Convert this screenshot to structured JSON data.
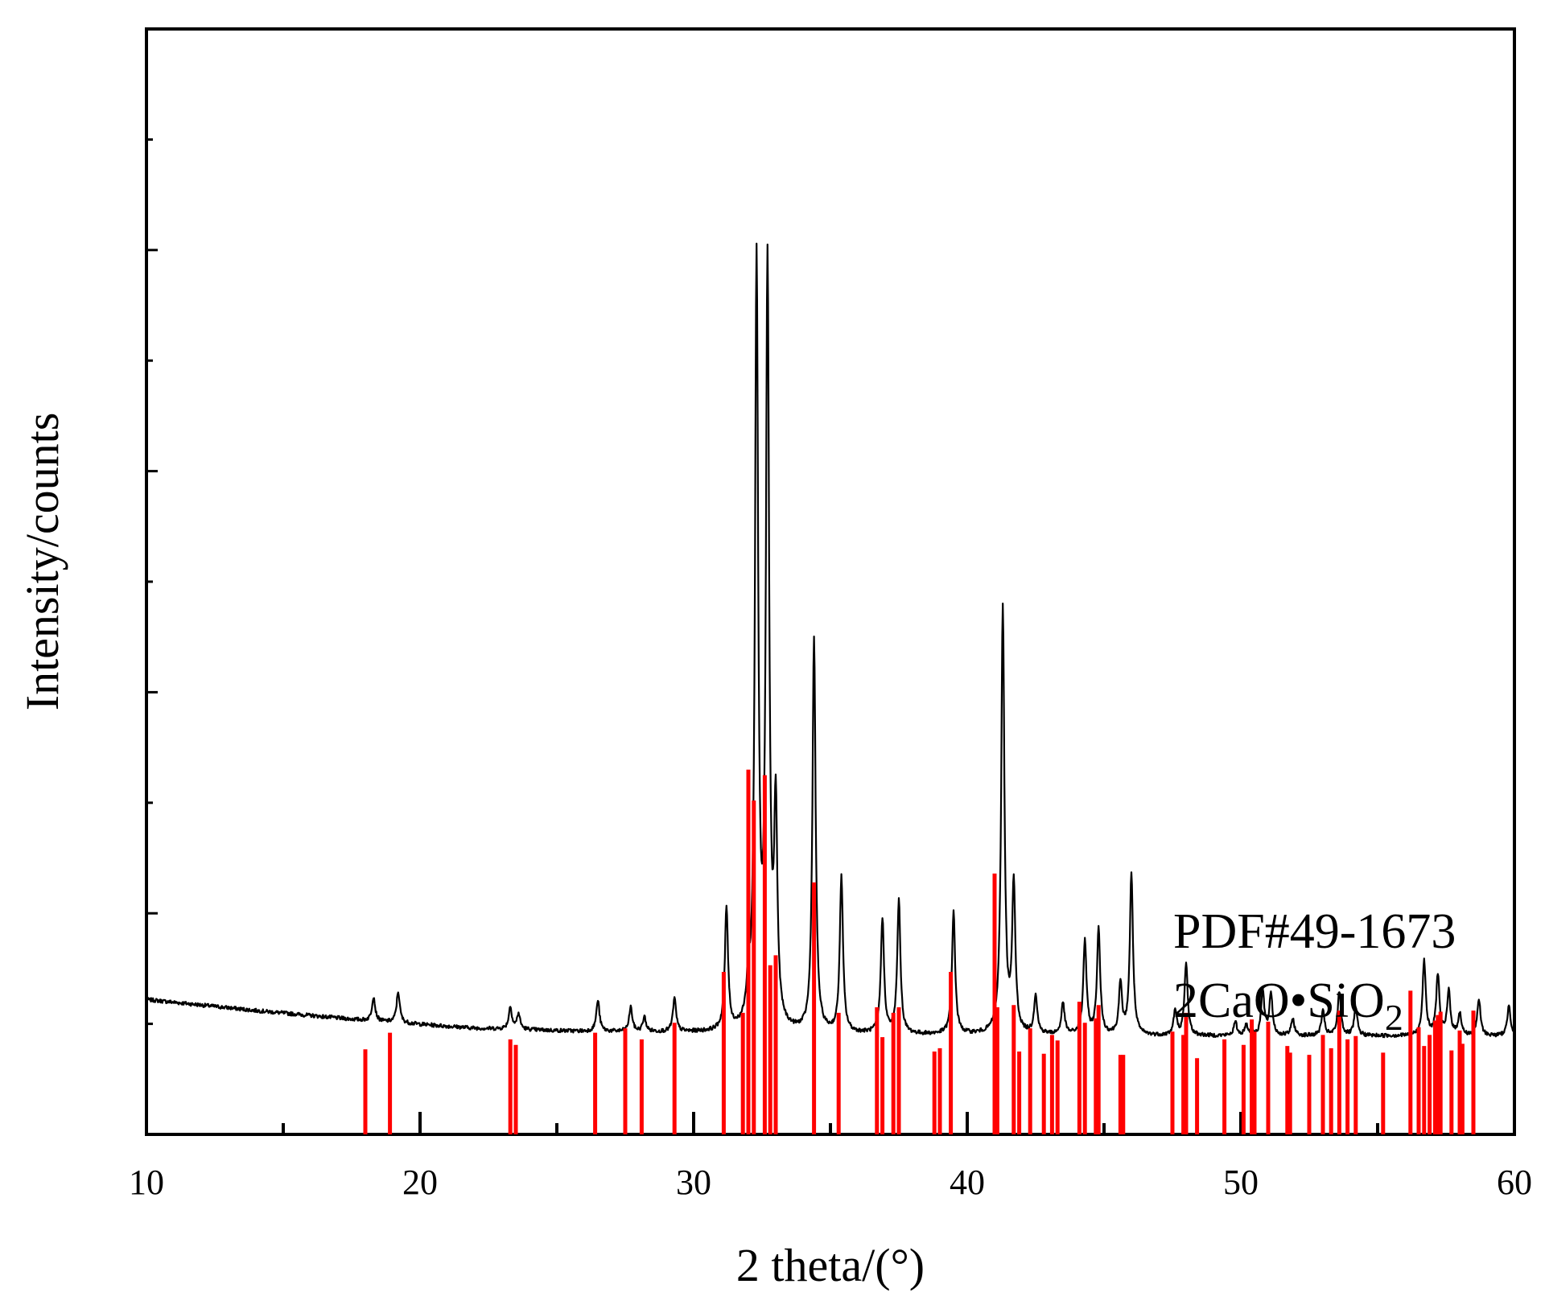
{
  "chart_data": {
    "type": "line",
    "title": "",
    "xlabel": "2 theta/(°)",
    "ylabel": "Intensity/counts",
    "xlim": [
      10,
      60
    ],
    "ylim": [
      0,
      1000
    ],
    "x_ticks": [
      "10",
      "20",
      "30",
      "40",
      "50",
      "60"
    ],
    "grid": false,
    "legend": "none",
    "series": [
      {
        "type": "line",
        "color": "#000000",
        "baseline": [
          [
            10,
            122
          ],
          [
            14,
            112
          ],
          [
            18,
            103
          ],
          [
            22,
            96
          ],
          [
            26,
            93
          ],
          [
            30,
            92
          ],
          [
            34,
            91
          ],
          [
            38,
            90
          ],
          [
            42,
            90
          ],
          [
            46,
            89
          ],
          [
            50,
            89
          ],
          [
            54,
            89
          ],
          [
            58,
            89
          ],
          [
            60,
            89
          ]
        ],
        "peaks": [
          [
            18.3,
            22
          ],
          [
            19.2,
            28
          ],
          [
            23.3,
            20
          ],
          [
            23.6,
            14
          ],
          [
            26.5,
            28
          ],
          [
            27.7,
            22
          ],
          [
            28.2,
            13
          ],
          [
            29.3,
            30
          ],
          [
            31.2,
            110
          ],
          [
            32.0,
            32
          ],
          [
            32.3,
            688
          ],
          [
            32.7,
            683
          ],
          [
            33.0,
            190
          ],
          [
            34.4,
            355
          ],
          [
            35.4,
            140
          ],
          [
            36.9,
            104
          ],
          [
            37.5,
            120
          ],
          [
            39.5,
            110
          ],
          [
            41.3,
            385
          ],
          [
            41.7,
            133
          ],
          [
            42.5,
            35
          ],
          [
            43.5,
            28
          ],
          [
            44.3,
            85
          ],
          [
            44.8,
            95
          ],
          [
            45.6,
            45
          ],
          [
            46.0,
            145
          ],
          [
            47.6,
            22
          ],
          [
            48.0,
            65
          ],
          [
            49.8,
            12
          ],
          [
            50.2,
            10
          ],
          [
            50.8,
            40
          ],
          [
            51.1,
            38
          ],
          [
            51.9,
            15
          ],
          [
            53.0,
            22
          ],
          [
            53.6,
            40
          ],
          [
            54.2,
            25
          ],
          [
            56.7,
            68
          ],
          [
            57.2,
            55
          ],
          [
            57.6,
            40
          ],
          [
            58.0,
            20
          ],
          [
            58.7,
            33
          ],
          [
            59.8,
            28
          ]
        ]
      },
      {
        "type": "stick",
        "name": "PDF#49-1673",
        "color": "#ff0000",
        "x": [
          18.0,
          18.9,
          23.3,
          23.5,
          26.4,
          27.5,
          28.1,
          29.3,
          31.1,
          31.8,
          32.0,
          32.2,
          32.6,
          32.8,
          33.0,
          34.4,
          35.3,
          36.7,
          36.9,
          37.3,
          37.5,
          38.8,
          39.0,
          39.4,
          41.0,
          41.1,
          41.7,
          41.9,
          42.3,
          42.8,
          43.1,
          43.3,
          44.1,
          44.3,
          44.7,
          44.8,
          45.6,
          45.7,
          47.5,
          47.9,
          48.0,
          48.4,
          49.4,
          50.1,
          50.4,
          50.5,
          51.0,
          51.7,
          51.8,
          52.5,
          53.0,
          53.3,
          53.6,
          53.9,
          54.2,
          55.2,
          56.2,
          56.5,
          56.7,
          56.9,
          57.1,
          57.2,
          57.3,
          57.7,
          58.0,
          58.1,
          58.5
        ],
        "values": [
          77,
          92,
          86,
          81,
          92,
          96,
          86,
          101,
          147,
          110,
          330,
          302,
          325,
          153,
          162,
          228,
          110,
          115,
          88,
          110,
          115,
          75,
          78,
          147,
          236,
          115,
          117,
          75,
          96,
          73,
          90,
          85,
          120,
          101,
          105,
          117,
          72,
          72,
          93,
          90,
          110,
          69,
          86,
          81,
          104,
          93,
          102,
          80,
          74,
          72,
          90,
          78,
          112,
          86,
          89,
          74,
          130,
          97,
          80,
          90,
          103,
          108,
          111,
          76,
          94,
          82,
          112
        ]
      }
    ],
    "annotations": [
      {
        "text": "PDF#49-1673"
      },
      {
        "text": "2CaO•SiO",
        "subscript": "2"
      }
    ]
  }
}
